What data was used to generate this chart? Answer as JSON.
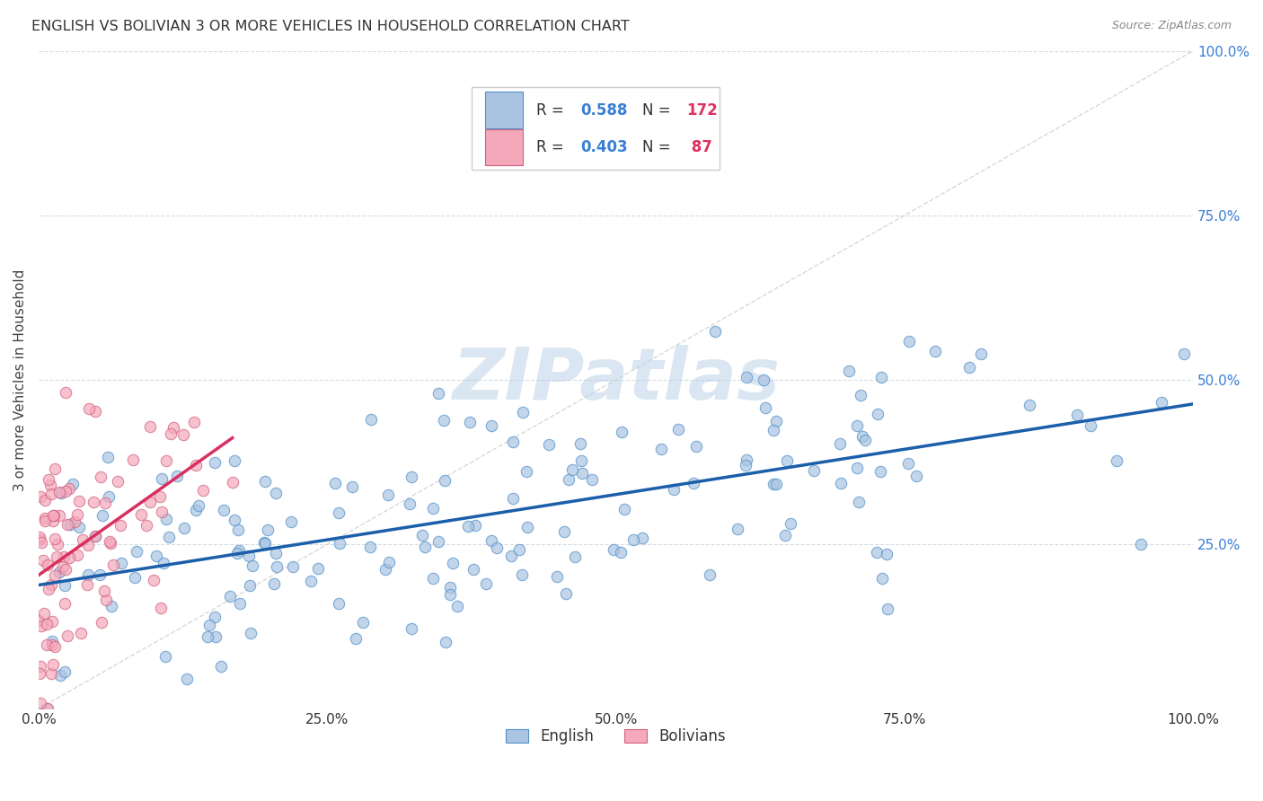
{
  "title": "ENGLISH VS BOLIVIAN 3 OR MORE VEHICLES IN HOUSEHOLD CORRELATION CHART",
  "source": "Source: ZipAtlas.com",
  "ylabel": "3 or more Vehicles in Household",
  "english_color": "#aac4e2",
  "bolivian_color": "#f5a8ba",
  "english_line_color": "#1b5faa",
  "bolivian_line_color": "#d93060",
  "diagonal_color": "#c8c8c8",
  "watermark": "ZIPatlas",
  "background_color": "#ffffff",
  "grid_color": "#d0d8e0",
  "right_tick_color": "#3a7fd5",
  "legend_r_color": "#3a7fd5",
  "legend_n_color": "#e03060"
}
